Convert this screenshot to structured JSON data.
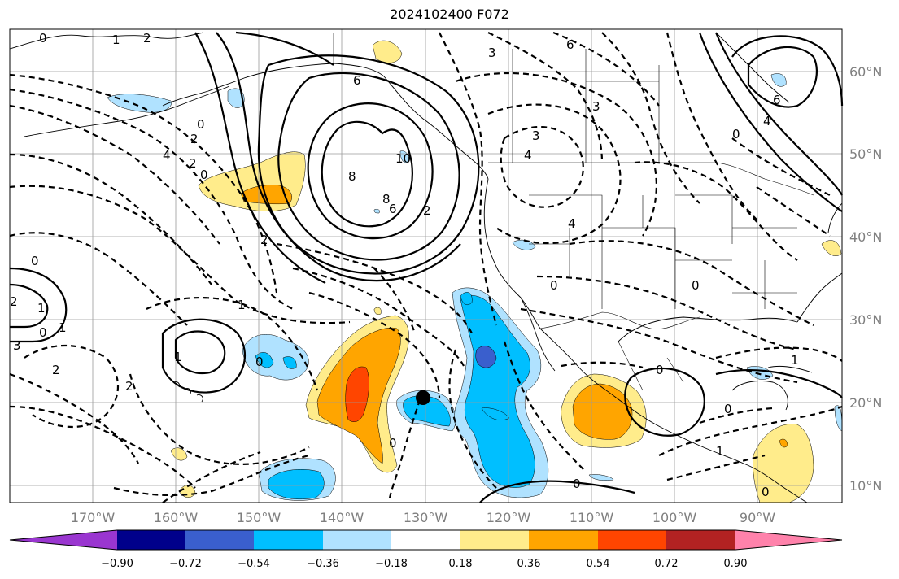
{
  "title": "2024102400 F072",
  "lat_labels": [
    "60°N",
    "50°N",
    "40°N",
    "30°N",
    "20°N",
    "10°N"
  ],
  "lon_labels": [
    "170°W",
    "160°W",
    "150°W",
    "140°W",
    "130°W",
    "120°W",
    "110°W",
    "100°W",
    "90°W"
  ],
  "colorbar": {
    "tick_labels": [
      "−0.90",
      "−0.72",
      "−0.54",
      "−0.36",
      "−0.18",
      "0.18",
      "0.36",
      "0.54",
      "0.72",
      "0.90"
    ],
    "colors": [
      "#9a36d0",
      "#00008b",
      "#3a5fcd",
      "#00bfff",
      "#b0e2ff",
      "#ffffff",
      "#ffec8b",
      "#ffa500",
      "#ff4500",
      "#b22222",
      "#ff82ab"
    ]
  },
  "shading": {
    "light_blue": "#b0e2ff",
    "blue": "#00bfff",
    "dark_blue": "#3a5fcd",
    "light_yellow": "#ffec8b",
    "orange": "#ffa500",
    "red": "#ff4500"
  },
  "contour_labels": [
    "0",
    "1",
    "2",
    "4",
    "2",
    "0",
    "0",
    "6",
    "8",
    "10",
    "8",
    "6",
    "2",
    "3",
    "4",
    "3",
    "6",
    "3",
    "4",
    "0",
    "2",
    "1",
    "0",
    "1",
    "2",
    "1",
    "0",
    "0",
    "1",
    "0",
    "2",
    "0",
    "0",
    "0",
    "0",
    "1",
    "0",
    "3",
    "1",
    "2",
    "0",
    "2",
    "6",
    "4"
  ],
  "marker": {
    "name": "black dot",
    "lat": 20.7,
    "lon": -130.3
  }
}
